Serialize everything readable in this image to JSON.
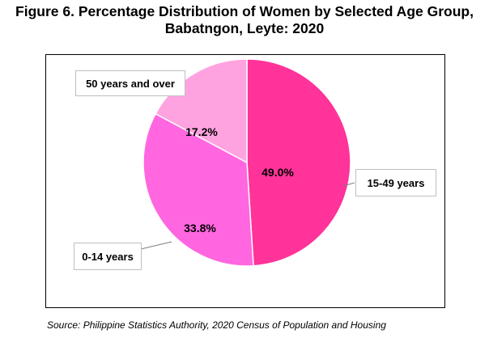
{
  "title": {
    "line1": "Figure 6. Percentage Distribution of Women by Selected Age Group,",
    "line2": "Babatngon, Leyte: 2020"
  },
  "source": "Source: Philippine Statistics Authority, 2020 Census of Population and Housing",
  "chart_data": {
    "type": "pie",
    "title": "Figure 6. Percentage Distribution of Women by Selected Age Group, Babatngon, Leyte: 2020",
    "categories": [
      "15-49 years",
      "0-14 years",
      "50 years and over"
    ],
    "values": [
      49.0,
      33.8,
      17.2
    ],
    "value_labels": [
      "49.0%",
      "33.8%",
      "17.2%"
    ],
    "colors": [
      "#ff3399",
      "#ff66e0",
      "#ffa3e0"
    ],
    "start_angle": "12 o'clock, clockwise",
    "legend": "none (category callout labels)"
  }
}
